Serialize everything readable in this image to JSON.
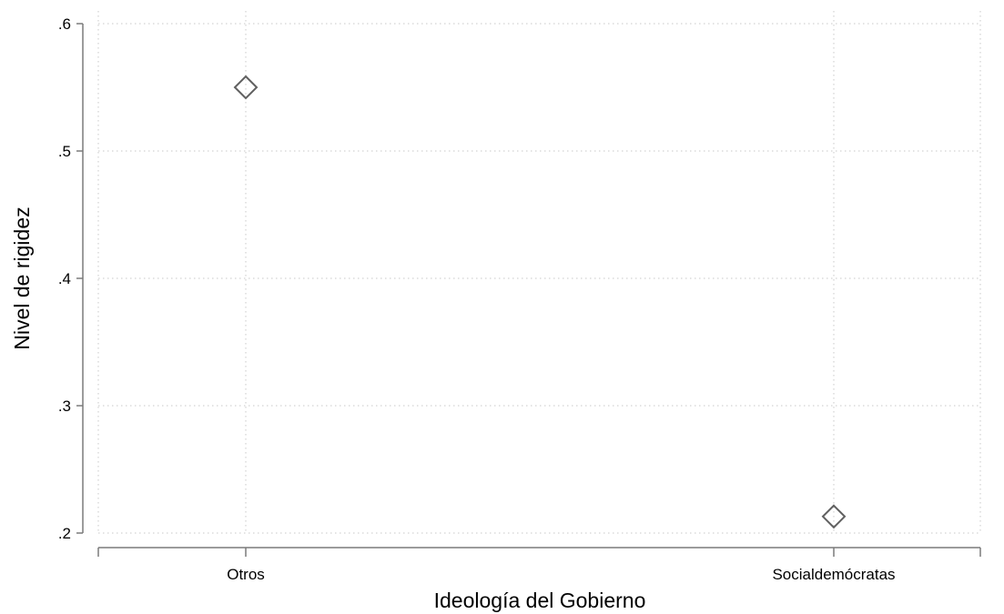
{
  "chart_data": {
    "type": "scatter",
    "xlabel": "Ideología del Gobierno",
    "ylabel": "Nivel de rigidez",
    "categories": [
      "Otros",
      "Socialdemócratas"
    ],
    "values": [
      0.55,
      0.213
    ],
    "ylim": [
      0.2,
      0.6
    ],
    "yticks": [
      0.2,
      0.3,
      0.4,
      0.5,
      0.6
    ],
    "ytick_labels": [
      ".2",
      ".3",
      ".4",
      ".5",
      ".6"
    ],
    "grid": true,
    "marker": "hollow-diamond",
    "marker_color": "#606060"
  }
}
